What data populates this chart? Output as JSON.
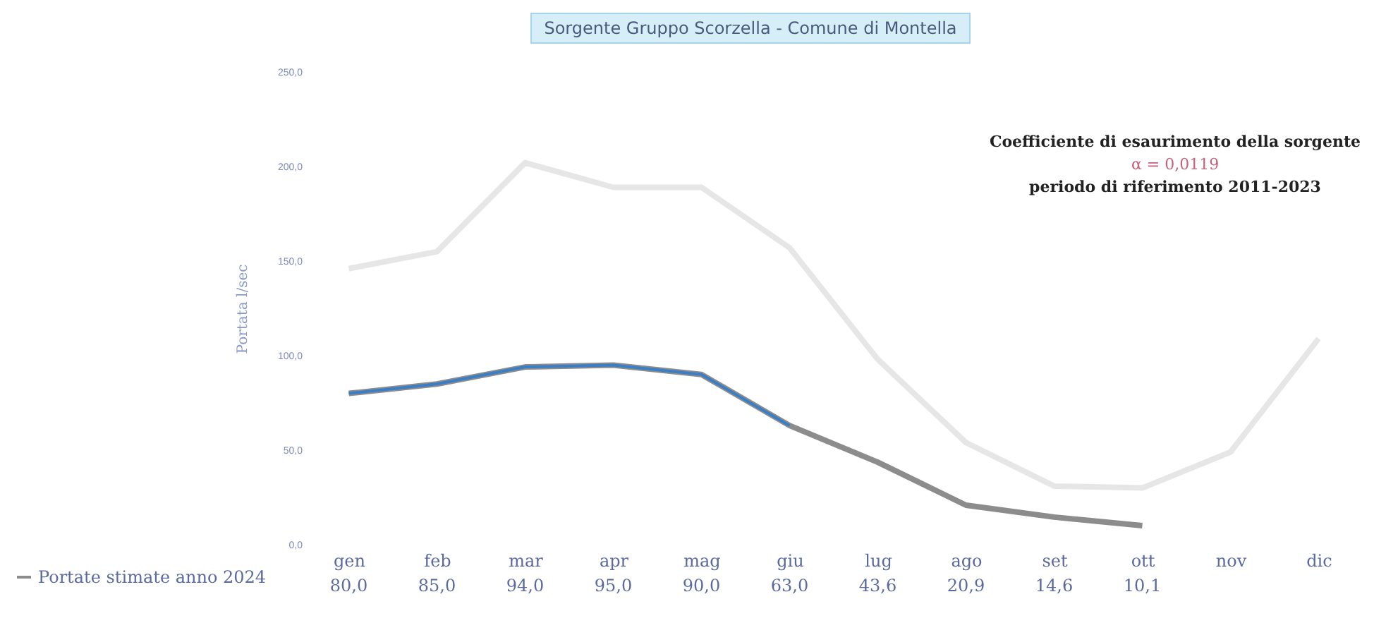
{
  "chart_data": {
    "type": "line",
    "title": "Sorgente Gruppo Scorzella - Comune di Montella",
    "ylabel": "Portata l/sec",
    "categories": [
      "gen",
      "feb",
      "mar",
      "apr",
      "mag",
      "giu",
      "lug",
      "ago",
      "set",
      "ott",
      "nov",
      "dic"
    ],
    "series": [
      {
        "color": "#e6e6e6",
        "values": [
          146,
          155,
          202,
          189,
          189,
          157,
          98,
          54,
          31,
          30,
          49,
          109
        ]
      },
      {
        "name": "Portate stimate anno 2024",
        "color": "#8c8c8c",
        "values": [
          80,
          85,
          94,
          95,
          90,
          63,
          43.6,
          20.9,
          14.6,
          10.1,
          null,
          null
        ],
        "value_labels": [
          "80,0",
          "85,0",
          "94,0",
          "95,0",
          "90,0",
          "63,0",
          "43,6",
          "20,9",
          "14,6",
          "10,1",
          null,
          null
        ]
      },
      {
        "color": "#3a7fc6",
        "values": [
          80,
          85,
          94,
          95,
          90,
          63,
          null,
          null,
          null,
          null,
          null,
          null
        ]
      }
    ],
    "ylim": [
      0,
      250
    ],
    "yticks": [
      {
        "value": 0,
        "label": "0,0"
      },
      {
        "value": 50,
        "label": "50,0"
      },
      {
        "value": 100,
        "label": "100,0"
      },
      {
        "value": 150,
        "label": "150,0"
      },
      {
        "value": 200,
        "label": "200,0"
      },
      {
        "value": 250,
        "label": "250,0"
      }
    ],
    "annotations": [
      "Coefficiente di esaurimento della sorgente",
      "α = 0,0119",
      "periodo di riferimento 2011-2023"
    ],
    "grid": false,
    "legend": "bottom left",
    "marker": "none",
    "line_style": "solid"
  }
}
